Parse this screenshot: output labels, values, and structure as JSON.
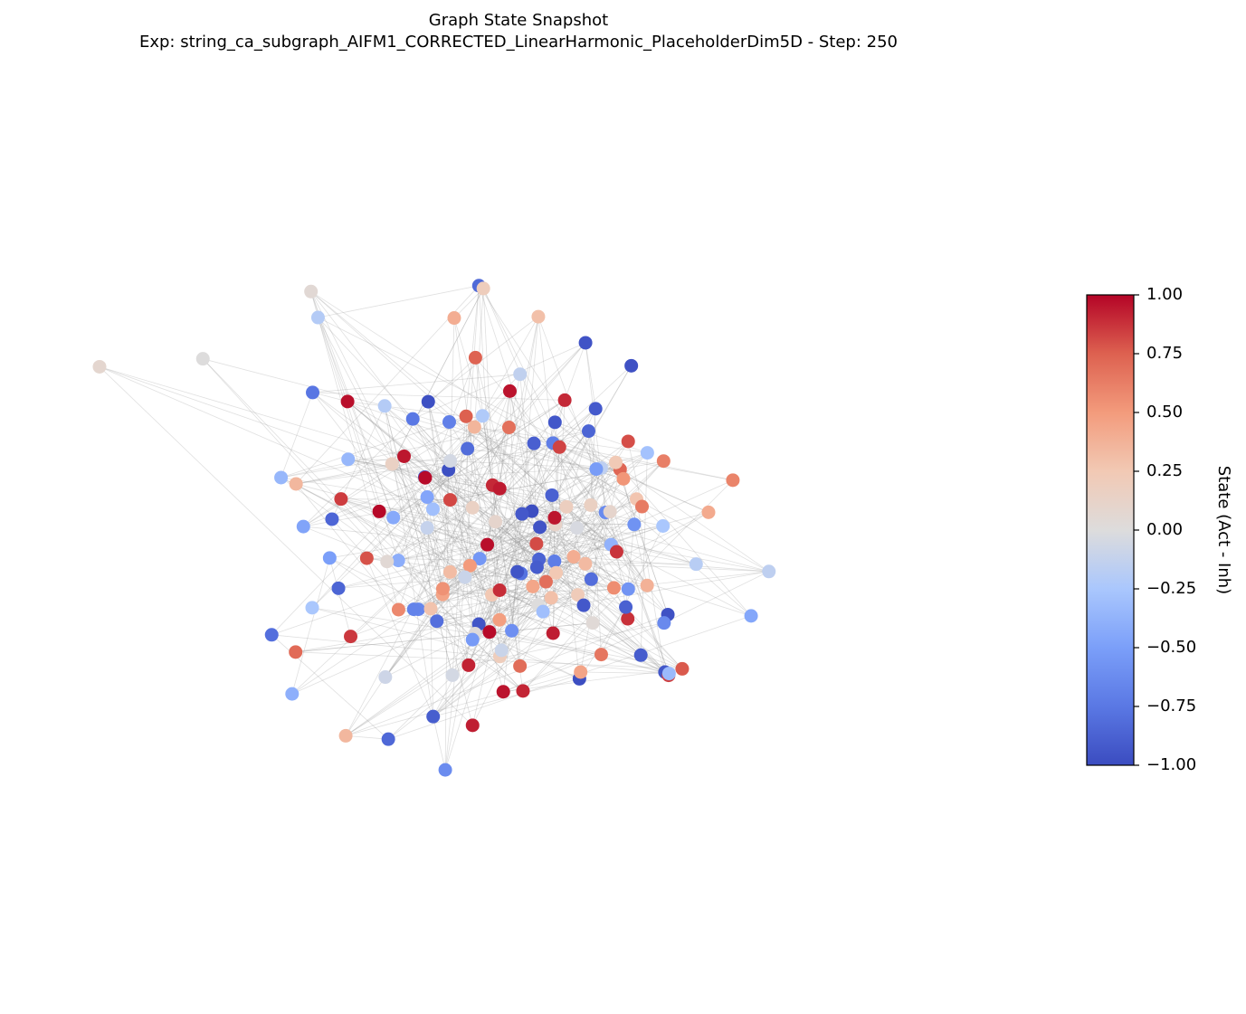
{
  "chart_data": {
    "type": "network",
    "title": "Graph State Snapshot",
    "subtitle": "Exp: string_ca_subgraph_AIFM1_CORRECTED_LinearHarmonic_PlaceholderDim5D - Step: 250",
    "colormap": "coolwarm",
    "values": [
      -0.95,
      0.92,
      -0.88,
      0.81,
      -0.72,
      0.35,
      -0.41,
      0.05,
      -0.98,
      0.97,
      -0.63,
      0.22,
      -0.15,
      0.68,
      -0.91,
      0.88,
      -0.55,
      0.45,
      -0.83,
      0.99,
      -0.97,
      0.74,
      -0.3,
      0.12,
      -0.86,
      0.93,
      -0.78,
      0.56,
      -0.2,
      0.3,
      -0.99,
      0.85,
      -0.66,
      0.4,
      -0.9,
      0.95,
      -0.47,
      0.18,
      -0.08,
      0.62,
      -0.94,
      0.9,
      -0.85,
      0.77,
      -0.6,
      0.25,
      -0.35,
      0.02,
      -0.96,
      0.98,
      -0.7,
      0.5,
      -0.12,
      0.71,
      -0.89,
      0.84,
      -0.52,
      0.33,
      -0.8,
      0.96,
      -0.93,
      0.66,
      -0.25,
      0.1,
      -0.87,
      0.91,
      -0.75,
      0.58,
      -0.18,
      0.28,
      -0.98,
      0.8,
      -0.62,
      0.44,
      -0.92,
      0.94,
      -0.44,
      0.2,
      -0.05,
      0.6,
      -0.95,
      0.89,
      -0.82,
      0.75,
      -0.58,
      0.27,
      -0.38,
      0.0,
      -0.97,
      0.96,
      -0.68,
      0.48,
      -0.1,
      0.73,
      -0.9,
      0.82,
      -0.5,
      0.36,
      -0.84,
      0.93,
      -0.91,
      0.7,
      -0.28,
      0.15,
      -0.88,
      0.9,
      -0.76,
      0.54,
      -0.22,
      0.32,
      -0.99,
      0.86,
      -0.64,
      0.42,
      -0.93,
      0.97,
      -0.46,
      0.16,
      -0.03,
      0.64,
      -0.96,
      0.87,
      -0.8,
      0.79,
      -0.57,
      0.24,
      -0.33,
      0.04,
      -0.94,
      0.95,
      -0.71,
      0.52,
      -0.14,
      0.69,
      -0.86,
      0.83,
      -0.53,
      0.38,
      -0.81,
      0.98,
      -0.35,
      0.3,
      -0.2,
      0.1,
      -0.45,
      0.4,
      -0.15,
      0.05,
      -0.3,
      0.25,
      -0.05,
      0.15,
      -0.4,
      0.35,
      -0.1,
      0.2,
      -0.25,
      0.45,
      0.0,
      0.08
    ],
    "colorbar": {
      "label": "State (Act - Inh)",
      "lim": [
        -1,
        1
      ],
      "ticks": [
        {
          "value": -1,
          "label": "−1.00"
        },
        {
          "value": -0.75,
          "label": "−0.75"
        },
        {
          "value": -0.5,
          "label": "−0.50"
        },
        {
          "value": -0.25,
          "label": "−0.25"
        },
        {
          "value": 0,
          "label": "0.00"
        },
        {
          "value": 0.25,
          "label": "0.25"
        },
        {
          "value": 0.5,
          "label": "0.50"
        },
        {
          "value": 0.75,
          "label": "0.75"
        },
        {
          "value": 1,
          "label": "1.00"
        }
      ]
    }
  }
}
